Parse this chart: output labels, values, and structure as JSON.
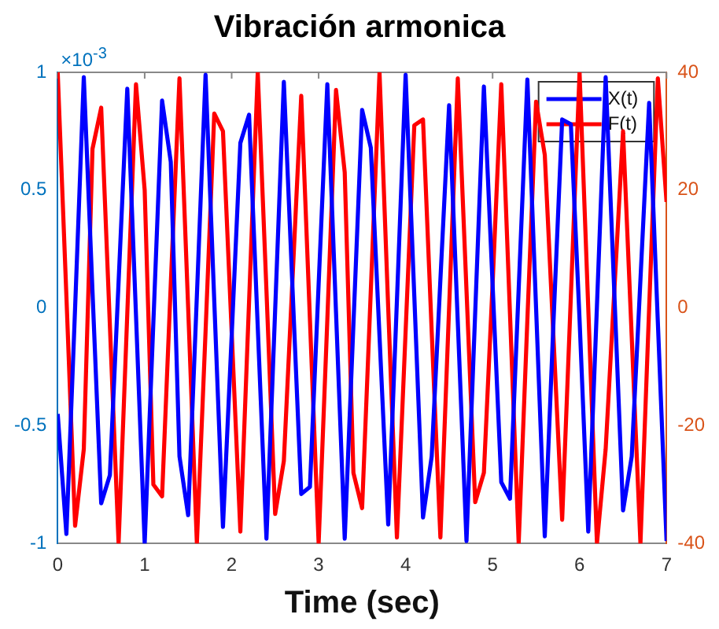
{
  "chart_data": {
    "type": "line",
    "title": "Vibración armonica",
    "xlabel": "Time (sec)",
    "x": [
      0,
      0.1,
      0.2,
      0.3,
      0.4,
      0.5,
      0.6,
      0.7,
      0.8,
      0.9,
      1,
      1.1,
      1.2,
      1.3,
      1.4,
      1.5,
      1.6,
      1.7,
      1.8,
      1.9,
      2,
      2.1,
      2.2,
      2.3,
      2.4,
      2.5,
      2.6,
      2.7,
      2.8,
      2.9,
      3,
      3.1,
      3.2,
      3.3,
      3.4,
      3.5,
      3.6,
      3.7,
      3.8,
      3.9,
      4,
      4.1,
      4.2,
      4.3,
      4.4,
      4.5,
      4.6,
      4.7,
      4.8,
      4.9,
      5,
      5.1,
      5.2,
      5.3,
      5.4,
      5.5,
      5.6,
      5.7,
      5.8,
      5.9,
      6,
      6.1,
      6.2,
      6.3,
      6.4,
      6.5,
      6.6,
      6.7,
      6.8,
      6.9,
      7
    ],
    "series": [
      {
        "name": "X(t)",
        "color": "#0000ff",
        "values": [
          -0.45,
          -0.96,
          0.0,
          0.98,
          0.07,
          -0.83,
          -0.71,
          0.11,
          0.93,
          -0.03,
          -1.0,
          -0.06,
          0.88,
          0.62,
          -0.63,
          -0.88,
          0.05,
          0.99,
          0.03,
          -0.93,
          -0.12,
          0.7,
          0.82,
          -0.08,
          -0.98,
          -0.01,
          0.96,
          0.08,
          -0.79,
          -0.76,
          0.1,
          0.95,
          -0.02,
          -0.98,
          -0.07,
          0.84,
          0.68,
          -0.12,
          -0.92,
          0.03,
          0.99,
          0.05,
          -0.89,
          -0.63,
          0.12,
          0.86,
          -0.06,
          -0.99,
          -0.02,
          0.94,
          0.1,
          -0.74,
          -0.81,
          0.08,
          0.97,
          0.0,
          -0.97,
          -0.06,
          0.8,
          0.78,
          -0.05,
          -0.95,
          0.01,
          0.98,
          0.06,
          -0.86,
          -0.63,
          0.12,
          0.87,
          -0.06,
          -0.99
        ]
      },
      {
        "name": "F(t)",
        "color": "#ff0000",
        "axis": "y2",
        "values": [
          40,
          2,
          -37,
          -24,
          27,
          34,
          -3,
          -40,
          -1,
          38,
          20,
          -30,
          -32,
          4,
          39,
          0,
          -40,
          -4,
          33,
          30,
          -4,
          -38,
          1,
          40,
          3,
          -35,
          -26,
          5,
          36,
          -2,
          -40,
          -2,
          37,
          23,
          -28,
          -34,
          3,
          40,
          0,
          -39,
          -4,
          31,
          32,
          -4,
          -39,
          0,
          39,
          3,
          -33,
          -28,
          4,
          38,
          -1,
          -40,
          -2,
          35,
          26,
          -5,
          -36,
          2,
          40,
          0,
          -40,
          -24,
          3,
          30,
          -5,
          -40,
          0,
          39,
          18
        ]
      }
    ],
    "xlim": [
      0,
      7
    ],
    "xticks": [
      0,
      1,
      2,
      3,
      4,
      5,
      6,
      7
    ],
    "ylim": [
      -1,
      1
    ],
    "yticks": [
      -1,
      -0.5,
      0,
      0.5,
      1
    ],
    "y2lim": [
      -40,
      40
    ],
    "y2ticks": [
      -40,
      -20,
      0,
      20,
      40
    ],
    "annotations": [
      "×10$^{-3}$"
    ],
    "legend": "top right",
    "grid": false,
    "marker": "none",
    "line_style": "solid"
  }
}
